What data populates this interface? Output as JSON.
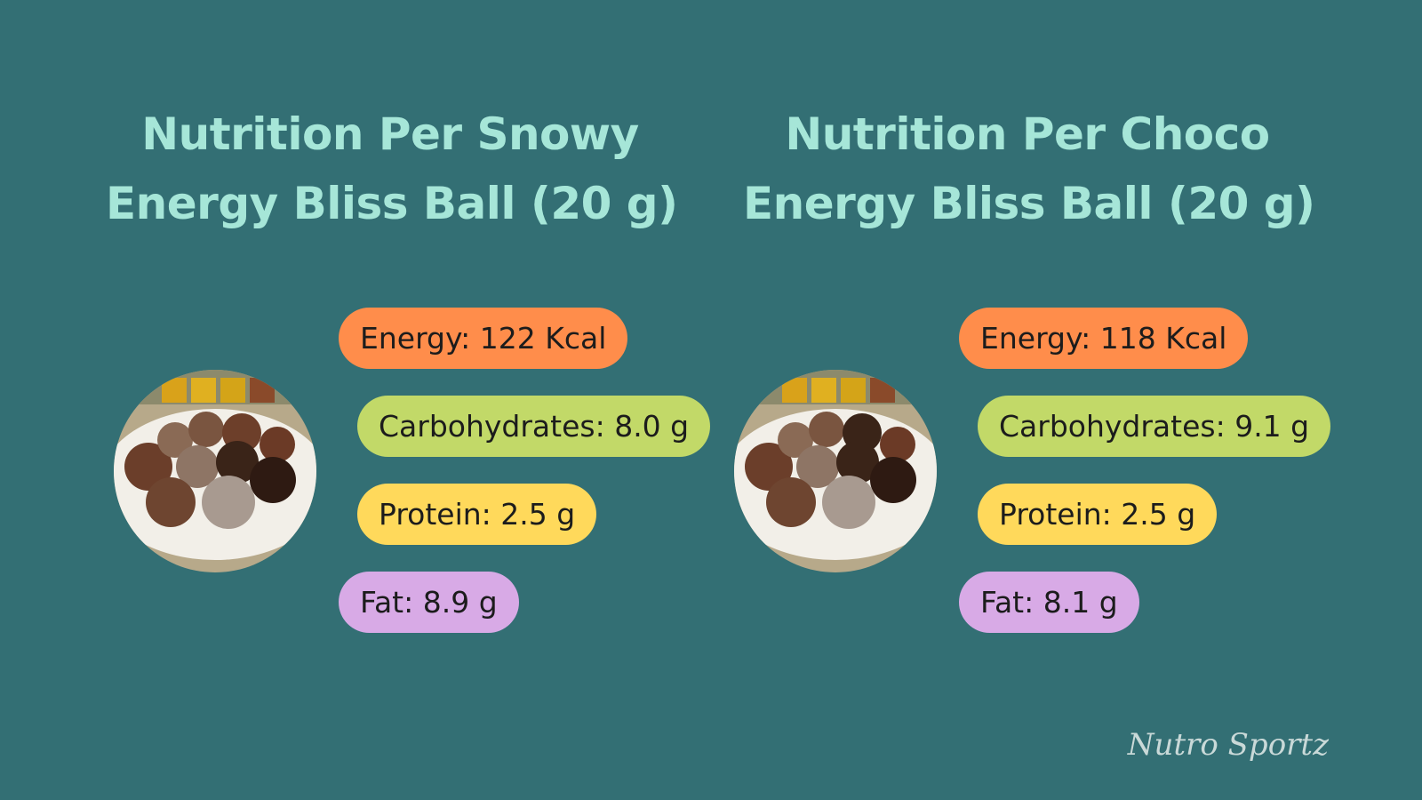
{
  "panels": [
    {
      "title": [
        "Nutrition Per Snowy",
        "Energy Bliss Ball (20 g)"
      ],
      "items": [
        "Energy: 122 Kcal",
        "Carbohydrates: 8.0 g",
        "Protein: 2.5 g",
        "Fat: 8.9 g"
      ]
    },
    {
      "title": [
        "Nutrition Per Choco",
        "Energy Bliss Ball (20 g)"
      ],
      "items": [
        "Energy: 118 Kcal",
        "Carbohydrates: 9.1 g",
        "Protein: 2.5 g",
        "Fat: 8.1 g"
      ]
    }
  ],
  "watermark": "Nutro Sportz"
}
